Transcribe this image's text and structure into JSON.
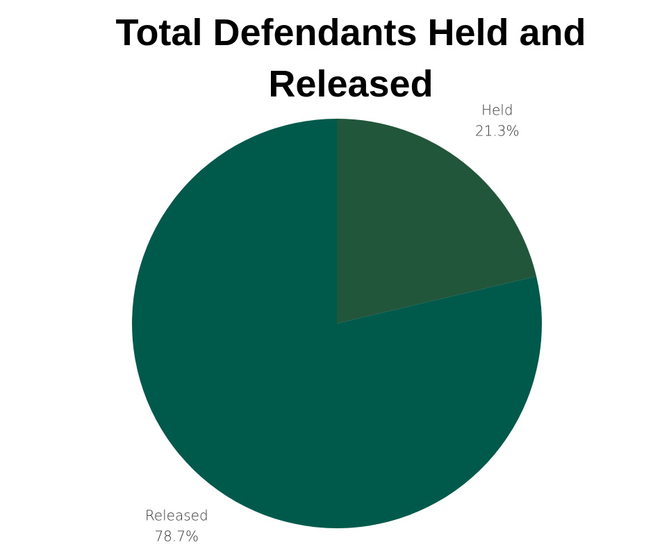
{
  "chart_data": {
    "type": "pie",
    "title": "Total Defendants Held and Released",
    "categories": [
      "Held",
      "Released"
    ],
    "values": [
      21.3,
      78.7
    ],
    "value_labels": [
      "21.3%",
      "78.7%"
    ],
    "colors": [
      "#22563a",
      "#005a4b"
    ]
  }
}
